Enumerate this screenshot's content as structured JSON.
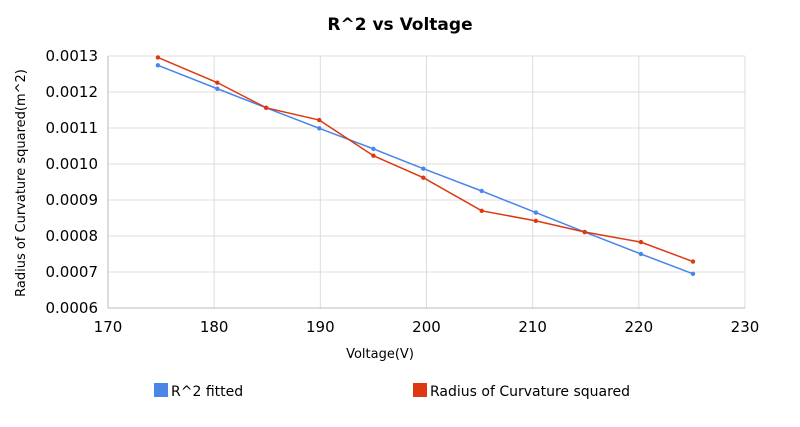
{
  "chart_data": {
    "type": "line",
    "title": "R^2 vs Voltage",
    "xlabel": "Voltage(V)",
    "ylabel": "Radius of Curvature squared(m^2)",
    "xlim": [
      170,
      230
    ],
    "ylim": [
      0.0006,
      0.0013
    ],
    "x_ticks": [
      "170",
      "180",
      "190",
      "200",
      "210",
      "220",
      "230"
    ],
    "y_ticks": [
      "0.0006",
      "0.0007",
      "0.0008",
      "0.0009",
      "0.0010",
      "0.0011",
      "0.0012",
      "0.0013"
    ],
    "grid": true,
    "legend_position": "bottom",
    "x": [
      174.7,
      180.3,
      184.9,
      189.9,
      195.0,
      199.7,
      205.2,
      210.3,
      214.9,
      220.2,
      225.1
    ],
    "series": [
      {
        "name": "R^2 fitted",
        "color": "#4a86e8",
        "values": [
          0.001274,
          0.001209,
          0.001156,
          0.001099,
          0.001042,
          0.000987,
          0.000925,
          0.000865,
          0.000811,
          0.00075,
          0.000695
        ]
      },
      {
        "name": "Radius of Curvature squared",
        "color": "#dc3912",
        "values": [
          0.001296,
          0.001226,
          0.001156,
          0.001122,
          0.001023,
          0.000962,
          0.00087,
          0.000842,
          0.000811,
          0.000783,
          0.000729
        ]
      }
    ]
  }
}
